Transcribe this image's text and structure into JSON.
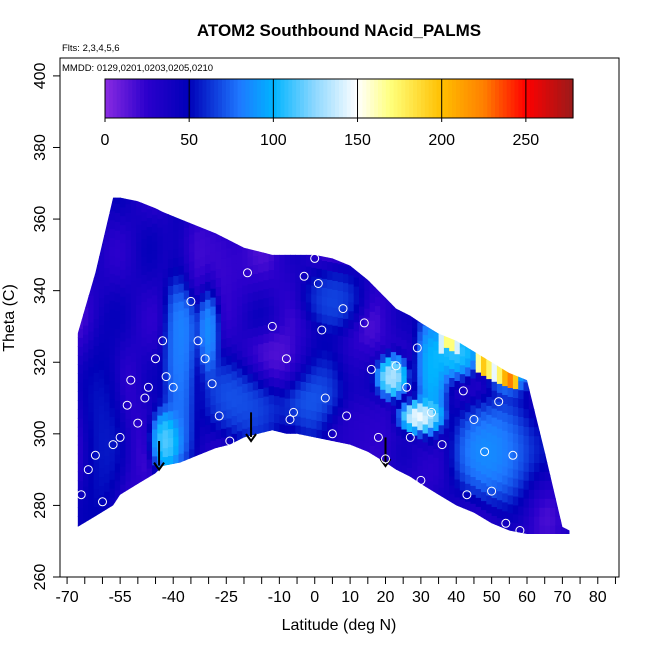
{
  "chart_data": {
    "type": "heatmap",
    "title": "ATOM2 Southbound NAcid_PALMS",
    "notes": {
      "flights": "Flts: 2,3,4,5,6",
      "dates": "MMDD: 0129,0201,0203,0205,0210"
    },
    "xlabel": "Latitude (deg N)",
    "ylabel": "Theta (C)",
    "xlim": [
      -72,
      86
    ],
    "ylim": [
      260,
      405
    ],
    "x_ticks_labeled": [
      -70,
      -55,
      -40,
      -25,
      -10,
      0,
      10,
      20,
      30,
      40,
      50,
      60,
      70,
      80
    ],
    "x_ticks_minor": [
      -65,
      -60,
      -50,
      -45,
      -35,
      -30,
      -20,
      -15,
      -5,
      5,
      15,
      25,
      35,
      45,
      55,
      65,
      75,
      85
    ],
    "y_ticks": [
      260,
      280,
      300,
      320,
      340,
      360,
      380,
      400
    ],
    "colorbar": {
      "min": 0,
      "max": 278,
      "tick_values": [
        0,
        50,
        100,
        150,
        200,
        250
      ],
      "stops": [
        {
          "v": 0,
          "color": "#8a2be2"
        },
        {
          "v": 25,
          "color": "#2b00cc"
        },
        {
          "v": 50,
          "color": "#0000b8"
        },
        {
          "v": 80,
          "color": "#1e78ff"
        },
        {
          "v": 100,
          "color": "#00b4ff"
        },
        {
          "v": 125,
          "color": "#8fd8ff"
        },
        {
          "v": 150,
          "color": "#ffffff"
        },
        {
          "v": 170,
          "color": "#ffff7a"
        },
        {
          "v": 200,
          "color": "#ffbf00"
        },
        {
          "v": 225,
          "color": "#ff7f00"
        },
        {
          "v": 250,
          "color": "#ff0000"
        },
        {
          "v": 278,
          "color": "#9a1a1a"
        }
      ]
    },
    "field_region": {
      "latitude": [
        -67,
        -62,
        -57,
        -55,
        -50,
        -45,
        -43,
        -38,
        -33,
        -28,
        -24,
        -20,
        -16,
        -12,
        -8,
        -5,
        0,
        5,
        10,
        15,
        20,
        23,
        27,
        30,
        35,
        40,
        45,
        50,
        55,
        60,
        65,
        70,
        72
      ],
      "theta_top": [
        328,
        345,
        366,
        366,
        365,
        363,
        362,
        360,
        358,
        356,
        354,
        352,
        351,
        350,
        350,
        350,
        350,
        349,
        347,
        343,
        338,
        335,
        333,
        331,
        328,
        326,
        323,
        320,
        317,
        315,
        295,
        274,
        273
      ],
      "theta_bottom": [
        274,
        277,
        280,
        283,
        286,
        289,
        291,
        292,
        294,
        296,
        297,
        299,
        300,
        301,
        300,
        300,
        299,
        298,
        297,
        295,
        292,
        290,
        288,
        286,
        283,
        280,
        278,
        275,
        273,
        272,
        272,
        272,
        272
      ]
    },
    "field_features": [
      {
        "lat": -38,
        "theta": 322,
        "value": 90,
        "spread_lat": 3,
        "spread_theta": 22
      },
      {
        "lat": -30,
        "theta": 330,
        "value": 95,
        "spread_lat": 2,
        "spread_theta": 10
      },
      {
        "lat": -42,
        "theta": 298,
        "value": 130,
        "spread_lat": 3,
        "spread_theta": 6
      },
      {
        "lat": -20,
        "theta": 310,
        "value": 75,
        "spread_lat": 8,
        "spread_theta": 8
      },
      {
        "lat": 0,
        "theta": 312,
        "value": 78,
        "spread_lat": 6,
        "spread_theta": 10
      },
      {
        "lat": 5,
        "theta": 338,
        "value": 72,
        "spread_lat": 6,
        "spread_theta": 6
      },
      {
        "lat": 22,
        "theta": 316,
        "value": 150,
        "spread_lat": 3,
        "spread_theta": 4
      },
      {
        "lat": 30,
        "theta": 305,
        "value": 170,
        "spread_lat": 4,
        "spread_theta": 3
      },
      {
        "lat": 33,
        "theta": 318,
        "value": 110,
        "spread_lat": 3,
        "spread_theta": 12
      },
      {
        "lat": 40,
        "theta": 323,
        "value": 120,
        "spread_lat": 5,
        "spread_theta": 5
      },
      {
        "lat": 50,
        "theta": 295,
        "value": 95,
        "spread_lat": 8,
        "spread_theta": 10
      },
      {
        "lat": 55,
        "theta": 318,
        "value": 110,
        "spread_lat": 4,
        "spread_theta": 4
      },
      {
        "lat": -60,
        "theta": 300,
        "value": 60,
        "spread_lat": 4,
        "spread_theta": 20
      },
      {
        "lat": -30,
        "theta": 348,
        "value": 18,
        "spread_lat": 8,
        "spread_theta": 8
      },
      {
        "lat": -10,
        "theta": 320,
        "value": 10,
        "spread_lat": 8,
        "spread_theta": 6
      },
      {
        "lat": 10,
        "theta": 300,
        "value": 28,
        "spread_lat": 6,
        "spread_theta": 6
      }
    ],
    "top_edge_highlights": [
      {
        "lat": 38,
        "theta": 327,
        "value": 185
      },
      {
        "lat": 48,
        "theta": 322,
        "value": 200
      },
      {
        "lat": 55,
        "theta": 318,
        "value": 230
      }
    ],
    "observations": [
      {
        "lat": -64,
        "theta": 290
      },
      {
        "lat": -62,
        "theta": 294
      },
      {
        "lat": -57,
        "theta": 297
      },
      {
        "lat": -55,
        "theta": 299
      },
      {
        "lat": -53,
        "theta": 308
      },
      {
        "lat": -52,
        "theta": 315
      },
      {
        "lat": -50,
        "theta": 303
      },
      {
        "lat": -48,
        "theta": 310
      },
      {
        "lat": -47,
        "theta": 313
      },
      {
        "lat": -45,
        "theta": 321
      },
      {
        "lat": -43,
        "theta": 326
      },
      {
        "lat": -42,
        "theta": 316
      },
      {
        "lat": -40,
        "theta": 313
      },
      {
        "lat": -35,
        "theta": 337
      },
      {
        "lat": -33,
        "theta": 326
      },
      {
        "lat": -31,
        "theta": 321
      },
      {
        "lat": -29,
        "theta": 314
      },
      {
        "lat": -27,
        "theta": 305
      },
      {
        "lat": -24,
        "theta": 298
      },
      {
        "lat": -19,
        "theta": 345
      },
      {
        "lat": -12,
        "theta": 330
      },
      {
        "lat": -8,
        "theta": 321
      },
      {
        "lat": -7,
        "theta": 304
      },
      {
        "lat": -6,
        "theta": 306
      },
      {
        "lat": -3,
        "theta": 344
      },
      {
        "lat": 0,
        "theta": 349
      },
      {
        "lat": 1,
        "theta": 342
      },
      {
        "lat": 2,
        "theta": 329
      },
      {
        "lat": 3,
        "theta": 310
      },
      {
        "lat": 5,
        "theta": 300
      },
      {
        "lat": 8,
        "theta": 335
      },
      {
        "lat": 9,
        "theta": 305
      },
      {
        "lat": 12,
        "theta": 348
      },
      {
        "lat": 14,
        "theta": 331
      },
      {
        "lat": 16,
        "theta": 318
      },
      {
        "lat": 18,
        "theta": 299
      },
      {
        "lat": 20,
        "theta": 293
      },
      {
        "lat": 23,
        "theta": 319
      },
      {
        "lat": 26,
        "theta": 313
      },
      {
        "lat": 27,
        "theta": 299
      },
      {
        "lat": 29,
        "theta": 324
      },
      {
        "lat": 30,
        "theta": 287
      },
      {
        "lat": 33,
        "theta": 306
      },
      {
        "lat": 36,
        "theta": 297
      },
      {
        "lat": 39,
        "theta": 331
      },
      {
        "lat": 42,
        "theta": 312
      },
      {
        "lat": 43,
        "theta": 283
      },
      {
        "lat": 45,
        "theta": 304
      },
      {
        "lat": 48,
        "theta": 295
      },
      {
        "lat": 50,
        "theta": 284
      },
      {
        "lat": 52,
        "theta": 309
      },
      {
        "lat": 54,
        "theta": 275
      },
      {
        "lat": 56,
        "theta": 294
      },
      {
        "lat": 58,
        "theta": 273
      },
      {
        "lat": -60,
        "theta": 281
      },
      {
        "lat": -66,
        "theta": 283
      }
    ],
    "flight_markers": [
      {
        "lat": -44,
        "theta": 294
      },
      {
        "lat": -18,
        "theta": 302
      },
      {
        "lat": 20,
        "theta": 295
      }
    ]
  }
}
